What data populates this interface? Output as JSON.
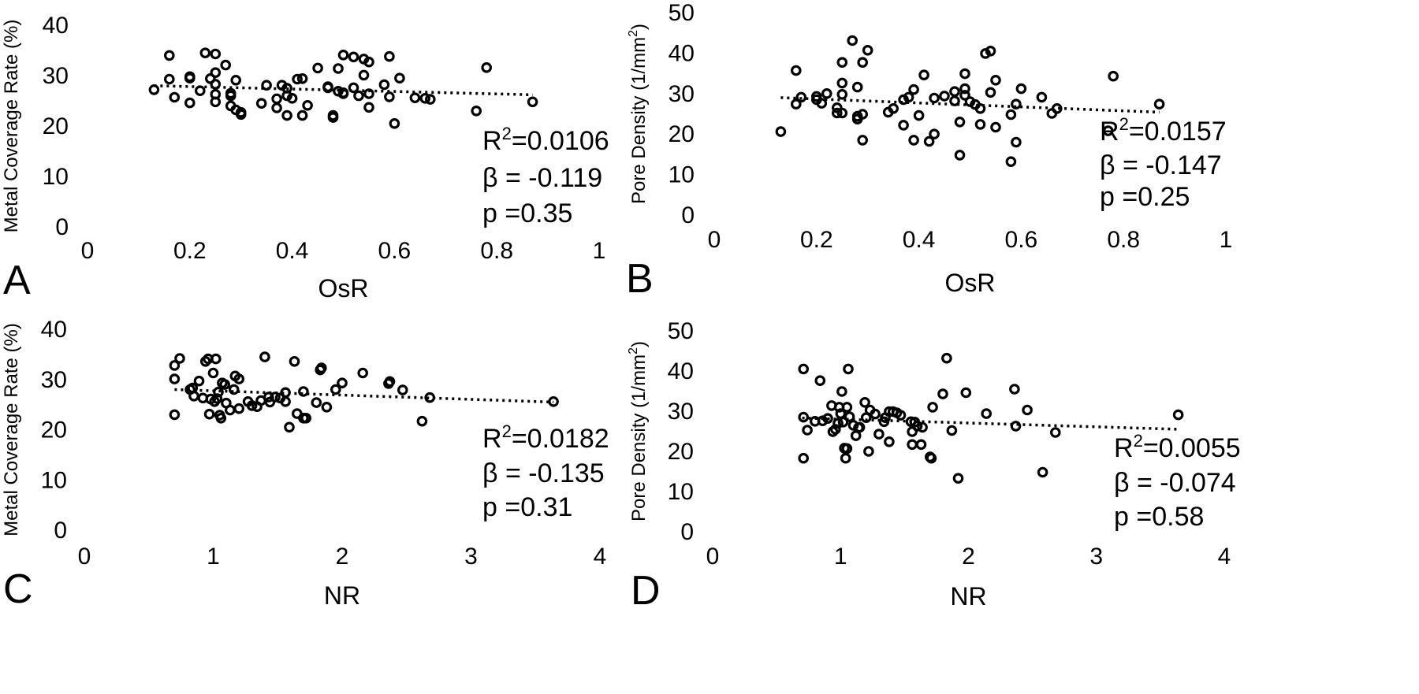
{
  "chart_data": [
    {
      "type": "scatter",
      "panel_label": "A",
      "xlabel": "OsR",
      "ylabel": "Metal Coverage Rate (%)",
      "xlim": [
        0,
        1
      ],
      "ylim": [
        0,
        40
      ],
      "xticks": [
        "0",
        "0.2",
        "0.4",
        "0.6",
        "0.8",
        "1"
      ],
      "yticks": [
        "0",
        "10",
        "20",
        "30",
        "40"
      ],
      "stats": {
        "r2_prefix": "R",
        "r2_sup": "2",
        "r2_value": "=0.0106",
        "beta": "β = -0.119",
        "p": "p =0.35"
      },
      "trendline": {
        "x": [
          0.13,
          0.87
        ],
        "y": [
          28.0,
          26.2
        ]
      },
      "points": [
        [
          0.13,
          27.2
        ],
        [
          0.16,
          29.3
        ],
        [
          0.16,
          34.0
        ],
        [
          0.17,
          25.7
        ],
        [
          0.2,
          29.8
        ],
        [
          0.2,
          29.5
        ],
        [
          0.2,
          24.6
        ],
        [
          0.22,
          27.0
        ],
        [
          0.23,
          34.5
        ],
        [
          0.24,
          29.4
        ],
        [
          0.25,
          34.3
        ],
        [
          0.25,
          30.6
        ],
        [
          0.25,
          28.3
        ],
        [
          0.25,
          26.3
        ],
        [
          0.25,
          24.8
        ],
        [
          0.27,
          32.1
        ],
        [
          0.28,
          26.5
        ],
        [
          0.28,
          26.0
        ],
        [
          0.29,
          29.1
        ],
        [
          0.28,
          24.0
        ],
        [
          0.29,
          23.2
        ],
        [
          0.3,
          22.7
        ],
        [
          0.3,
          22.3
        ],
        [
          0.34,
          24.5
        ],
        [
          0.35,
          28.1
        ],
        [
          0.37,
          25.4
        ],
        [
          0.37,
          23.6
        ],
        [
          0.38,
          28.1
        ],
        [
          0.39,
          27.5
        ],
        [
          0.39,
          22.1
        ],
        [
          0.39,
          26.0
        ],
        [
          0.4,
          25.5
        ],
        [
          0.41,
          29.3
        ],
        [
          0.42,
          22.1
        ],
        [
          0.43,
          24.1
        ],
        [
          0.42,
          29.4
        ],
        [
          0.45,
          31.5
        ],
        [
          0.47,
          27.8
        ],
        [
          0.47,
          27.6
        ],
        [
          0.48,
          22.1
        ],
        [
          0.48,
          21.7
        ],
        [
          0.49,
          26.9
        ],
        [
          0.5,
          26.4
        ],
        [
          0.49,
          31.4
        ],
        [
          0.5,
          34.1
        ],
        [
          0.5,
          26.6
        ],
        [
          0.52,
          33.7
        ],
        [
          0.52,
          27.6
        ],
        [
          0.53,
          26.0
        ],
        [
          0.54,
          33.3
        ],
        [
          0.54,
          30.1
        ],
        [
          0.55,
          32.7
        ],
        [
          0.55,
          23.7
        ],
        [
          0.55,
          26.4
        ],
        [
          0.58,
          28.2
        ],
        [
          0.59,
          33.8
        ],
        [
          0.59,
          25.8
        ],
        [
          0.6,
          20.5
        ],
        [
          0.61,
          29.5
        ],
        [
          0.64,
          25.6
        ],
        [
          0.66,
          25.5
        ],
        [
          0.67,
          25.3
        ],
        [
          0.76,
          23.0
        ],
        [
          0.78,
          31.6
        ],
        [
          0.87,
          24.8
        ]
      ]
    },
    {
      "type": "scatter",
      "panel_label": "B",
      "xlabel": "OsR",
      "ylabel": "Pore Density (1/mm",
      "ylabel_sup": "2",
      "ylabel_end": ")",
      "xlim": [
        0,
        1
      ],
      "ylim": [
        0,
        50
      ],
      "xticks": [
        "0",
        "0.2",
        "0.4",
        "0.6",
        "0.8",
        "1"
      ],
      "yticks": [
        "0",
        "10",
        "20",
        "30",
        "40",
        "50"
      ],
      "stats": {
        "r2_prefix": "R",
        "r2_sup": "2",
        "r2_value": "=0.0157",
        "beta": "β = -0.147",
        "p": "p =0.25"
      },
      "trendline": {
        "x": [
          0.13,
          0.87
        ],
        "y": [
          29.0,
          25.4
        ]
      },
      "points": [
        [
          0.13,
          20.6
        ],
        [
          0.16,
          35.7
        ],
        [
          0.16,
          27.4
        ],
        [
          0.17,
          29.1
        ],
        [
          0.2,
          28.5
        ],
        [
          0.2,
          29.3
        ],
        [
          0.21,
          27.6
        ],
        [
          0.22,
          30.0
        ],
        [
          0.24,
          26.5
        ],
        [
          0.24,
          25.2
        ],
        [
          0.25,
          37.7
        ],
        [
          0.25,
          32.6
        ],
        [
          0.25,
          25.2
        ],
        [
          0.25,
          29.8
        ],
        [
          0.27,
          43.1
        ],
        [
          0.28,
          24.4
        ],
        [
          0.28,
          23.7
        ],
        [
          0.28,
          31.6
        ],
        [
          0.29,
          37.7
        ],
        [
          0.29,
          24.9
        ],
        [
          0.29,
          18.5
        ],
        [
          0.3,
          40.7
        ],
        [
          0.34,
          25.4
        ],
        [
          0.35,
          26.3
        ],
        [
          0.37,
          22.2
        ],
        [
          0.37,
          28.5
        ],
        [
          0.38,
          29.1
        ],
        [
          0.39,
          31.0
        ],
        [
          0.39,
          18.5
        ],
        [
          0.4,
          24.6
        ],
        [
          0.41,
          34.6
        ],
        [
          0.42,
          18.2
        ],
        [
          0.43,
          28.9
        ],
        [
          0.43,
          20.0
        ],
        [
          0.45,
          29.4
        ],
        [
          0.47,
          28.2
        ],
        [
          0.47,
          30.5
        ],
        [
          0.48,
          23.0
        ],
        [
          0.48,
          14.8
        ],
        [
          0.49,
          29.6
        ],
        [
          0.49,
          31.2
        ],
        [
          0.49,
          34.9
        ],
        [
          0.5,
          28.0
        ],
        [
          0.51,
          27.3
        ],
        [
          0.52,
          26.3
        ],
        [
          0.52,
          22.4
        ],
        [
          0.53,
          39.9
        ],
        [
          0.54,
          40.5
        ],
        [
          0.54,
          30.3
        ],
        [
          0.55,
          33.3
        ],
        [
          0.55,
          21.7
        ],
        [
          0.58,
          13.2
        ],
        [
          0.58,
          24.8
        ],
        [
          0.59,
          18.0
        ],
        [
          0.59,
          27.4
        ],
        [
          0.6,
          31.2
        ],
        [
          0.64,
          29.1
        ],
        [
          0.66,
          25.1
        ],
        [
          0.67,
          26.3
        ],
        [
          0.77,
          20.8
        ],
        [
          0.78,
          34.3
        ],
        [
          0.87,
          27.4
        ]
      ]
    },
    {
      "type": "scatter",
      "panel_label": "C",
      "xlabel": "NR",
      "ylabel": "Metal Coverage Rate (%)",
      "xlim": [
        0,
        4
      ],
      "ylim": [
        0,
        40
      ],
      "xticks": [
        "0",
        "1",
        "2",
        "3",
        "4"
      ],
      "yticks": [
        "0",
        "10",
        "20",
        "30",
        "40"
      ],
      "stats": {
        "r2_prefix": "R",
        "r2_sup": "2",
        "r2_value": "=0.0182",
        "beta": "β = -0.135",
        "p": "p =0.31"
      },
      "trendline": {
        "x": [
          0.7,
          3.64
        ],
        "y": [
          28.0,
          25.5
        ]
      },
      "points": [
        [
          0.7,
          32.8
        ],
        [
          0.7,
          30.1
        ],
        [
          0.7,
          23.0
        ],
        [
          0.74,
          34.2
        ],
        [
          0.82,
          28.0
        ],
        [
          0.84,
          28.3
        ],
        [
          0.85,
          26.7
        ],
        [
          0.89,
          29.7
        ],
        [
          0.92,
          26.3
        ],
        [
          0.94,
          33.6
        ],
        [
          0.96,
          34.1
        ],
        [
          0.97,
          23.1
        ],
        [
          0.98,
          26.1
        ],
        [
          1.0,
          31.3
        ],
        [
          1.01,
          25.6
        ],
        [
          1.02,
          34.1
        ],
        [
          1.03,
          26.2
        ],
        [
          1.04,
          27.5
        ],
        [
          1.05,
          22.9
        ],
        [
          1.06,
          22.3
        ],
        [
          1.07,
          29.3
        ],
        [
          1.09,
          29.0
        ],
        [
          1.1,
          25.3
        ],
        [
          1.13,
          23.9
        ],
        [
          1.16,
          28.0
        ],
        [
          1.17,
          30.7
        ],
        [
          1.2,
          30.1
        ],
        [
          1.2,
          24.2
        ],
        [
          1.27,
          25.6
        ],
        [
          1.3,
          24.8
        ],
        [
          1.34,
          24.6
        ],
        [
          1.37,
          25.8
        ],
        [
          1.4,
          34.5
        ],
        [
          1.43,
          26.5
        ],
        [
          1.44,
          25.5
        ],
        [
          1.48,
          26.5
        ],
        [
          1.52,
          26.3
        ],
        [
          1.56,
          27.4
        ],
        [
          1.56,
          25.6
        ],
        [
          1.59,
          20.5
        ],
        [
          1.63,
          33.6
        ],
        [
          1.65,
          23.2
        ],
        [
          1.7,
          22.3
        ],
        [
          1.7,
          27.6
        ],
        [
          1.72,
          22.3
        ],
        [
          1.8,
          25.4
        ],
        [
          1.83,
          31.9
        ],
        [
          1.84,
          32.3
        ],
        [
          1.88,
          24.5
        ],
        [
          1.95,
          28.0
        ],
        [
          2.0,
          29.3
        ],
        [
          2.16,
          31.3
        ],
        [
          2.36,
          29.2
        ],
        [
          2.37,
          29.6
        ],
        [
          2.47,
          27.9
        ],
        [
          2.62,
          21.7
        ],
        [
          2.68,
          26.4
        ],
        [
          3.64,
          25.6
        ]
      ]
    },
    {
      "type": "scatter",
      "panel_label": "D",
      "xlabel": "NR",
      "ylabel": "Pore Density (1/mm",
      "ylabel_sup": "2",
      "ylabel_end": ")",
      "xlim": [
        0,
        4
      ],
      "ylim": [
        0,
        50
      ],
      "xticks": [
        "0",
        "1",
        "2",
        "3",
        "4"
      ],
      "yticks": [
        "0",
        "10",
        "20",
        "30",
        "40",
        "50"
      ],
      "stats": {
        "r2_prefix": "R",
        "r2_sup": "2",
        "r2_value": "=0.0055",
        "beta": "β = -0.074",
        "p": "p =0.58"
      },
      "trendline": {
        "x": [
          0.7,
          3.64
        ],
        "y": [
          28.3,
          25.5
        ]
      },
      "points": [
        [
          0.71,
          40.5
        ],
        [
          0.71,
          28.5
        ],
        [
          0.71,
          18.3
        ],
        [
          0.74,
          25.3
        ],
        [
          0.8,
          27.5
        ],
        [
          0.84,
          37.6
        ],
        [
          0.86,
          27.6
        ],
        [
          0.9,
          28.2
        ],
        [
          0.93,
          31.4
        ],
        [
          0.94,
          24.9
        ],
        [
          0.96,
          25.5
        ],
        [
          0.98,
          27.0
        ],
        [
          0.99,
          31.0
        ],
        [
          1.0,
          29.4
        ],
        [
          1.01,
          34.9
        ],
        [
          1.02,
          27.3
        ],
        [
          1.03,
          20.8
        ],
        [
          1.04,
          18.3
        ],
        [
          1.05,
          20.7
        ],
        [
          1.05,
          31.0
        ],
        [
          1.06,
          40.5
        ],
        [
          1.07,
          28.6
        ],
        [
          1.1,
          26.5
        ],
        [
          1.12,
          23.9
        ],
        [
          1.14,
          25.9
        ],
        [
          1.15,
          26.0
        ],
        [
          1.19,
          32.2
        ],
        [
          1.2,
          28.4
        ],
        [
          1.22,
          20.0
        ],
        [
          1.23,
          30.3
        ],
        [
          1.27,
          29.3
        ],
        [
          1.3,
          24.3
        ],
        [
          1.34,
          27.4
        ],
        [
          1.35,
          28.4
        ],
        [
          1.38,
          22.4
        ],
        [
          1.38,
          29.9
        ],
        [
          1.41,
          29.9
        ],
        [
          1.44,
          29.6
        ],
        [
          1.47,
          29.0
        ],
        [
          1.55,
          27.4
        ],
        [
          1.56,
          24.9
        ],
        [
          1.56,
          21.7
        ],
        [
          1.58,
          27.3
        ],
        [
          1.6,
          26.3
        ],
        [
          1.63,
          21.7
        ],
        [
          1.64,
          26.0
        ],
        [
          1.7,
          18.6
        ],
        [
          1.71,
          18.3
        ],
        [
          1.72,
          31.0
        ],
        [
          1.8,
          34.3
        ],
        [
          1.83,
          43.2
        ],
        [
          1.87,
          25.2
        ],
        [
          1.92,
          13.3
        ],
        [
          1.98,
          34.6
        ],
        [
          2.14,
          29.4
        ],
        [
          2.36,
          35.5
        ],
        [
          2.37,
          26.3
        ],
        [
          2.46,
          30.3
        ],
        [
          2.58,
          14.8
        ],
        [
          2.68,
          24.7
        ],
        [
          3.64,
          29.1
        ]
      ]
    }
  ]
}
